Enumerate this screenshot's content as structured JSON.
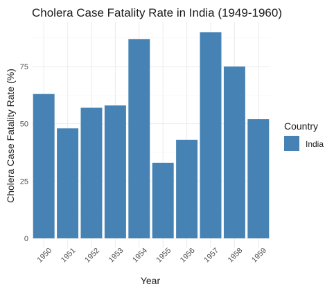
{
  "chart_data": {
    "type": "bar",
    "title": "Cholera Case Fatality Rate in India (1949-1960)",
    "xlabel": "Year",
    "ylabel": "Cholera Case Fatality Rate (%)",
    "categories": [
      "1950",
      "1951",
      "1952",
      "1953",
      "1954",
      "1955",
      "1956",
      "1957",
      "1958",
      "1959"
    ],
    "series": [
      {
        "name": "India",
        "values": [
          63,
          48,
          57,
          58,
          87,
          33,
          43,
          90,
          75,
          52
        ]
      }
    ],
    "ylim": [
      0,
      95
    ],
    "yticks": [
      0,
      25,
      50,
      75
    ],
    "grid": true,
    "legend": {
      "title": "Country",
      "placement": "right"
    },
    "colors": {
      "bar": "#4682b4",
      "grid_major": "#ebebeb",
      "grid_minor": "#f5f5f5"
    }
  }
}
